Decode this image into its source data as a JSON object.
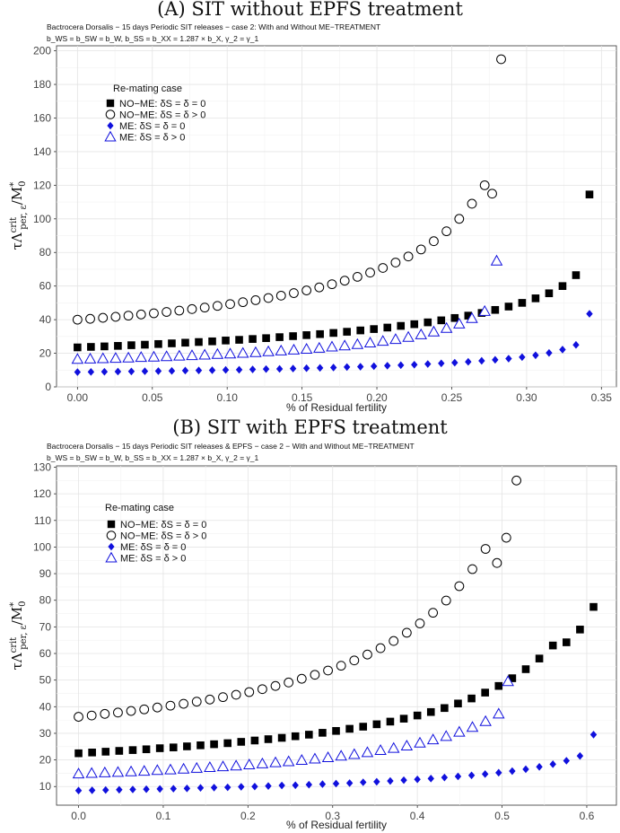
{
  "chart_data": [
    {
      "type": "scatter",
      "title": "(A) SIT without EPFS treatment",
      "subtitle": "Bactrocera Dorsalis − 15 days Periodic SIT releases − case 2: With and Without ME−TREATMENT",
      "params": "b_WS = b_SW = b_W, b_SS = b_XX = 1.287 × b_X, γ_2 = γ_1",
      "xlabel": "% of Residual fertility",
      "ylabel": "τΛ^crit_per,ε / M*_0",
      "xlim": [
        -0.014,
        0.36
      ],
      "ylim": [
        0,
        203
      ],
      "xticks": [
        0.0,
        0.05,
        0.1,
        0.15,
        0.2,
        0.25,
        0.3,
        0.35
      ],
      "xtick_labels": [
        "0.00",
        "0.05",
        "0.10",
        "0.15",
        "0.20",
        "0.25",
        "0.30",
        "0.35"
      ],
      "yticks": [
        0,
        20,
        40,
        60,
        80,
        100,
        120,
        140,
        160,
        180,
        200
      ],
      "ytick_labels": [
        "0",
        "20",
        "40",
        "60",
        "80",
        "100",
        "120",
        "140",
        "160",
        "180",
        "200"
      ],
      "legend_title": "Re-mating case",
      "legend_position": "upper-left",
      "grid": true,
      "series": [
        {
          "name": "NO−ME: δS = δ = 0",
          "marker": "filled-square",
          "color": "#000000",
          "x": [
            0,
            0.009,
            0.018,
            0.027,
            0.036,
            0.045,
            0.054,
            0.063,
            0.072,
            0.081,
            0.09,
            0.099,
            0.108,
            0.117,
            0.126,
            0.135,
            0.144,
            0.153,
            0.162,
            0.171,
            0.18,
            0.189,
            0.198,
            0.207,
            0.216,
            0.225,
            0.234,
            0.243,
            0.252,
            0.261,
            0.27,
            0.279,
            0.288,
            0.297,
            0.306,
            0.315,
            0.324,
            0.333,
            0.342
          ],
          "y": [
            23.5,
            23.8,
            24.1,
            24.4,
            24.8,
            25.1,
            25.5,
            25.9,
            26.3,
            26.7,
            27.1,
            27.6,
            28.0,
            28.5,
            29.0,
            29.6,
            30.2,
            30.8,
            31.4,
            32.1,
            32.8,
            33.6,
            34.4,
            35.3,
            36.3,
            37.3,
            38.4,
            39.6,
            41.0,
            42.4,
            44.0,
            45.8,
            47.8,
            50.0,
            52.7,
            55.7,
            60.0,
            66.5,
            114.5
          ]
        },
        {
          "name": "NO−ME: δS = δ > 0",
          "marker": "open-circle",
          "color": "#000000",
          "x": [
            0,
            0.0085,
            0.017,
            0.0255,
            0.034,
            0.0425,
            0.051,
            0.0595,
            0.068,
            0.0765,
            0.085,
            0.0935,
            0.102,
            0.1105,
            0.119,
            0.1275,
            0.136,
            0.1445,
            0.153,
            0.1615,
            0.17,
            0.1785,
            0.187,
            0.1955,
            0.204,
            0.2125,
            0.221,
            0.2295,
            0.238,
            0.2465,
            0.255,
            0.2635,
            0.272,
            0.277,
            0.283
          ],
          "y": [
            40.0,
            40.5,
            41.1,
            41.7,
            42.4,
            43.1,
            43.8,
            44.6,
            45.4,
            46.3,
            47.2,
            48.2,
            49.3,
            50.4,
            51.6,
            52.9,
            54.3,
            55.8,
            57.4,
            59.2,
            61.1,
            63.2,
            65.5,
            68.0,
            70.8,
            74.0,
            77.6,
            81.8,
            86.7,
            92.6,
            100.0,
            109.0,
            120.0,
            115.0,
            195.0
          ]
        },
        {
          "name": "ME: δS = δ = 0",
          "marker": "filled-diamond",
          "color": "#1010dd",
          "x": [
            0,
            0.009,
            0.018,
            0.027,
            0.036,
            0.045,
            0.054,
            0.063,
            0.072,
            0.081,
            0.09,
            0.099,
            0.108,
            0.117,
            0.126,
            0.135,
            0.144,
            0.153,
            0.162,
            0.171,
            0.18,
            0.189,
            0.198,
            0.207,
            0.216,
            0.225,
            0.234,
            0.243,
            0.252,
            0.261,
            0.27,
            0.279,
            0.288,
            0.297,
            0.306,
            0.315,
            0.324,
            0.333,
            0.342
          ],
          "y": [
            8.8,
            8.9,
            9.0,
            9.1,
            9.2,
            9.3,
            9.4,
            9.5,
            9.7,
            9.8,
            9.9,
            10.1,
            10.2,
            10.4,
            10.6,
            10.7,
            10.9,
            11.1,
            11.3,
            11.5,
            11.8,
            12.0,
            12.3,
            12.6,
            12.9,
            13.2,
            13.6,
            14.0,
            14.4,
            14.9,
            15.5,
            16.1,
            16.8,
            17.7,
            18.8,
            20.2,
            22.2,
            25.0,
            43.5
          ]
        },
        {
          "name": "ME: δS = δ > 0",
          "marker": "open-triangle",
          "color": "#1010dd",
          "x": [
            0,
            0.0085,
            0.017,
            0.0255,
            0.034,
            0.0425,
            0.051,
            0.0595,
            0.068,
            0.0765,
            0.085,
            0.0935,
            0.102,
            0.1105,
            0.119,
            0.1275,
            0.136,
            0.1445,
            0.153,
            0.1615,
            0.17,
            0.1785,
            0.187,
            0.1955,
            0.204,
            0.2125,
            0.221,
            0.2295,
            0.238,
            0.2465,
            0.255,
            0.2635,
            0.272,
            0.28
          ],
          "y": [
            16.5,
            16.7,
            16.9,
            17.1,
            17.3,
            17.6,
            17.8,
            18.1,
            18.4,
            18.7,
            19.0,
            19.4,
            19.7,
            20.1,
            20.5,
            21.0,
            21.5,
            22.0,
            22.5,
            23.1,
            23.8,
            24.5,
            25.3,
            26.2,
            27.2,
            28.3,
            29.6,
            31.1,
            32.8,
            34.9,
            37.5,
            40.8,
            45.0,
            75.0
          ]
        }
      ]
    },
    {
      "type": "scatter",
      "title": "(B) SIT with EPFS treatment",
      "subtitle": "Bactrocera Dorsalis − 15 days Periodic SIT releases & EPFS − case 2 − With and Without ME−TREATMENT",
      "params": "b_WS = b_SW = b_W, b_SS = b_XX = 1.287 × b_X, γ_2 = γ_1",
      "xlabel": "% of Residual fertility",
      "ylabel": "τΛ^crit_per,ε / M*_0",
      "xlim": [
        -0.026,
        0.635
      ],
      "ylim": [
        3,
        130.5
      ],
      "xticks": [
        0.0,
        0.1,
        0.2,
        0.3,
        0.4,
        0.5,
        0.6
      ],
      "xtick_labels": [
        "0.0",
        "0.1",
        "0.2",
        "0.3",
        "0.4",
        "0.5",
        "0.6"
      ],
      "yticks": [
        10,
        20,
        30,
        40,
        50,
        60,
        70,
        80,
        90,
        100,
        110,
        120,
        130
      ],
      "ytick_labels": [
        "10",
        "20",
        "30",
        "40",
        "50",
        "60",
        "70",
        "80",
        "90",
        "100",
        "110",
        "120",
        "130"
      ],
      "legend_title": "Re-mating case",
      "legend_position": "upper-left",
      "grid": true,
      "series": [
        {
          "name": "NO−ME: δS = δ = 0",
          "marker": "filled-square",
          "color": "#000000",
          "x": [
            0,
            0.016,
            0.032,
            0.048,
            0.064,
            0.08,
            0.096,
            0.112,
            0.128,
            0.144,
            0.16,
            0.176,
            0.192,
            0.208,
            0.224,
            0.24,
            0.256,
            0.272,
            0.288,
            0.304,
            0.32,
            0.336,
            0.352,
            0.368,
            0.384,
            0.4,
            0.416,
            0.432,
            0.448,
            0.464,
            0.48,
            0.496,
            0.512,
            0.528,
            0.544,
            0.56,
            0.576,
            0.592,
            0.608
          ],
          "y": [
            22.5,
            22.8,
            23.1,
            23.4,
            23.7,
            24.0,
            24.4,
            24.7,
            25.1,
            25.5,
            25.9,
            26.3,
            26.8,
            27.3,
            27.8,
            28.3,
            28.9,
            29.5,
            30.2,
            30.9,
            31.7,
            32.5,
            33.4,
            34.4,
            35.5,
            36.7,
            38.0,
            39.5,
            41.2,
            43.1,
            45.3,
            47.8,
            50.7,
            54.1,
            58.1,
            63.0,
            64.2,
            69.0,
            77.5
          ]
        },
        {
          "name": "NO−ME: δS = δ > 0",
          "marker": "open-circle",
          "color": "#000000",
          "x": [
            0,
            0.0155,
            0.031,
            0.0465,
            0.062,
            0.0775,
            0.093,
            0.1085,
            0.124,
            0.1395,
            0.155,
            0.1705,
            0.186,
            0.2015,
            0.217,
            0.2325,
            0.248,
            0.2635,
            0.279,
            0.2945,
            0.31,
            0.3255,
            0.341,
            0.3565,
            0.372,
            0.3875,
            0.403,
            0.4185,
            0.434,
            0.4495,
            0.465,
            0.4805,
            0.494,
            0.505,
            0.517
          ],
          "y": [
            36.2,
            36.7,
            37.3,
            37.8,
            38.4,
            39.0,
            39.7,
            40.4,
            41.1,
            41.9,
            42.7,
            43.6,
            44.5,
            45.5,
            46.6,
            47.8,
            49.1,
            50.5,
            52.0,
            53.6,
            55.4,
            57.4,
            59.6,
            62.0,
            64.7,
            67.8,
            71.3,
            75.3,
            79.9,
            85.3,
            91.7,
            99.3,
            94.0,
            103.5,
            125.0
          ]
        },
        {
          "name": "ME: δS = δ = 0",
          "marker": "filled-diamond",
          "color": "#1010dd",
          "x": [
            0,
            0.016,
            0.032,
            0.048,
            0.064,
            0.08,
            0.096,
            0.112,
            0.128,
            0.144,
            0.16,
            0.176,
            0.192,
            0.208,
            0.224,
            0.24,
            0.256,
            0.272,
            0.288,
            0.304,
            0.32,
            0.336,
            0.352,
            0.368,
            0.384,
            0.4,
            0.416,
            0.432,
            0.448,
            0.464,
            0.48,
            0.496,
            0.512,
            0.528,
            0.544,
            0.56,
            0.576,
            0.592,
            0.608
          ],
          "y": [
            8.5,
            8.6,
            8.7,
            8.8,
            8.9,
            9.0,
            9.1,
            9.2,
            9.3,
            9.5,
            9.6,
            9.7,
            9.9,
            10.0,
            10.2,
            10.4,
            10.5,
            10.7,
            10.9,
            11.1,
            11.3,
            11.6,
            11.8,
            12.1,
            12.4,
            12.7,
            13.0,
            13.4,
            13.8,
            14.2,
            14.7,
            15.2,
            15.8,
            16.5,
            17.4,
            18.4,
            19.7,
            21.5,
            29.5
          ]
        },
        {
          "name": "ME: δS = δ > 0",
          "marker": "open-triangle",
          "color": "#1010dd",
          "x": [
            0,
            0.0155,
            0.031,
            0.0465,
            0.062,
            0.0775,
            0.093,
            0.1085,
            0.124,
            0.1395,
            0.155,
            0.1705,
            0.186,
            0.2015,
            0.217,
            0.2325,
            0.248,
            0.2635,
            0.279,
            0.2945,
            0.31,
            0.3255,
            0.341,
            0.3565,
            0.372,
            0.3875,
            0.403,
            0.4185,
            0.434,
            0.4495,
            0.465,
            0.4805,
            0.496,
            0.507
          ],
          "y": [
            14.8,
            15.0,
            15.2,
            15.4,
            15.6,
            15.8,
            16.1,
            16.3,
            16.6,
            16.9,
            17.2,
            17.5,
            17.8,
            18.2,
            18.6,
            19.0,
            19.4,
            19.9,
            20.4,
            20.9,
            21.5,
            22.1,
            22.8,
            23.6,
            24.4,
            25.3,
            26.4,
            27.6,
            28.9,
            30.5,
            32.3,
            34.5,
            37.3,
            49.5
          ]
        }
      ]
    }
  ]
}
